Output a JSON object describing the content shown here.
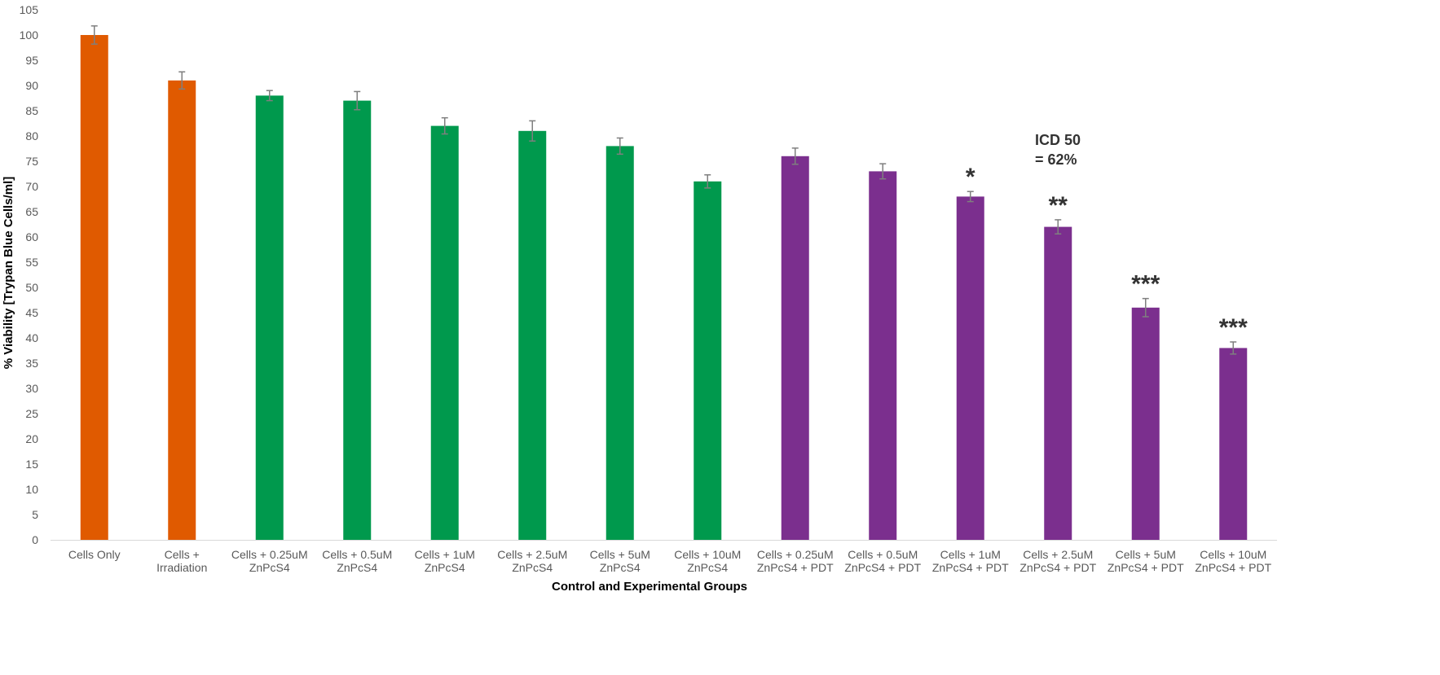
{
  "chart_data": {
    "type": "bar",
    "title": "",
    "xlabel": "Control and Experimental Groups",
    "ylabel": "% Viability [Trypan Blue Cells/ml]",
    "ylim": [
      0,
      105
    ],
    "ytick_step": 5,
    "grid": false,
    "legend": "none",
    "categories": [
      [
        "Cells Only"
      ],
      [
        "Cells +",
        "Irradiation"
      ],
      [
        "Cells + 0.25uM",
        "ZnPcS4"
      ],
      [
        "Cells + 0.5uM",
        "ZnPcS4"
      ],
      [
        "Cells + 1uM",
        "ZnPcS4"
      ],
      [
        "Cells + 2.5uM",
        "ZnPcS4"
      ],
      [
        "Cells + 5uM",
        "ZnPcS4"
      ],
      [
        "Cells + 10uM",
        "ZnPcS4"
      ],
      [
        "Cells + 0.25uM",
        "ZnPcS4 + PDT"
      ],
      [
        "Cells + 0.5uM",
        "ZnPcS4 + PDT"
      ],
      [
        "Cells + 1uM",
        "ZnPcS4 + PDT"
      ],
      [
        "Cells + 2.5uM",
        "ZnPcS4 + PDT"
      ],
      [
        "Cells + 5uM",
        "ZnPcS4 + PDT"
      ],
      [
        "Cells + 10uM",
        "ZnPcS4 + PDT"
      ]
    ],
    "values": [
      100,
      91,
      88,
      87,
      82,
      81,
      78,
      71,
      76,
      73,
      68,
      62,
      46,
      38
    ],
    "errors": [
      1.8,
      1.7,
      1.0,
      1.8,
      1.6,
      2.0,
      1.6,
      1.3,
      1.6,
      1.5,
      1.0,
      1.4,
      1.8,
      1.2
    ],
    "bar_colors": [
      "#e05a00",
      "#e05a00",
      "#00994d",
      "#00994d",
      "#00994d",
      "#00994d",
      "#00994d",
      "#00994d",
      "#7b2f8e",
      "#7b2f8e",
      "#7b2f8e",
      "#7b2f8e",
      "#7b2f8e",
      "#7b2f8e"
    ],
    "significance": [
      "",
      "",
      "",
      "",
      "",
      "",
      "",
      "",
      "",
      "",
      "*",
      "**",
      "***",
      "***"
    ],
    "annotation": {
      "lines": [
        "ICD 50",
        "= 62%"
      ]
    }
  }
}
